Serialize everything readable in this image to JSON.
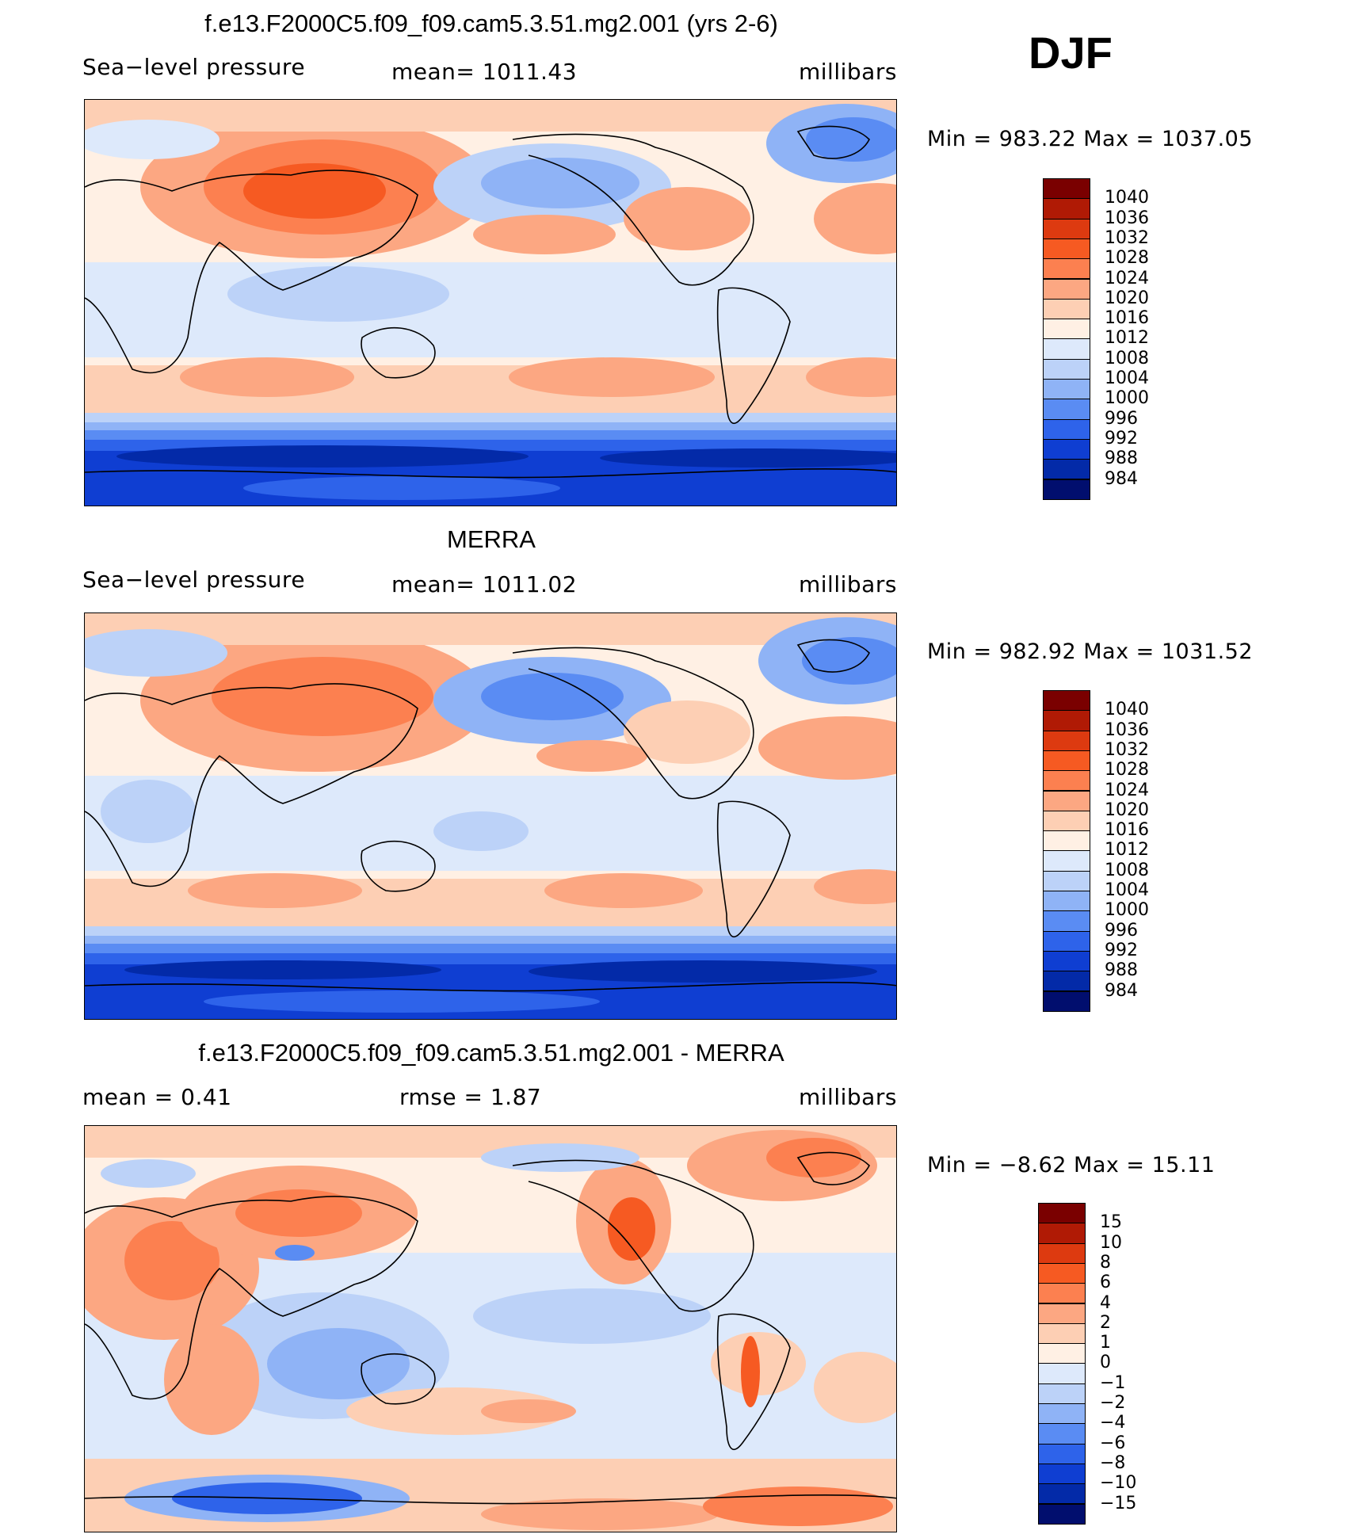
{
  "season": "DJF",
  "panels": [
    {
      "id": "model",
      "title": "f.e13.F2000C5.f09_f09.cam5.3.51.mg2.001 (yrs 2-6)",
      "left_label": "Sea−level pressure",
      "center_label": "mean=  1011.43",
      "right_label": "millibars",
      "minmax": "Min  =  983.22  Max  =  1037.05",
      "palette": "abs"
    },
    {
      "id": "obs",
      "title": "MERRA",
      "left_label": "Sea−level pressure",
      "center_label": "mean=  1011.02",
      "right_label": "millibars",
      "minmax": "Min  =  982.92  Max  =  1031.52",
      "palette": "abs"
    },
    {
      "id": "diff",
      "title": "f.e13.F2000C5.f09_f09.cam5.3.51.mg2.001 - MERRA",
      "left_label": "mean  =     0.41",
      "center_label": "rmse  =     1.87",
      "right_label": "millibars",
      "minmax": "Min  =   −8.62  Max  =    15.11",
      "palette": "diff"
    }
  ],
  "colorbars": {
    "abs": {
      "labels": [
        "1040",
        "1036",
        "1032",
        "1028",
        "1024",
        "1020",
        "1016",
        "1012",
        "1008",
        "1004",
        "1000",
        "996",
        "992",
        "988",
        "984"
      ],
      "colors": [
        "#7a0000",
        "#b01a05",
        "#dd3a10",
        "#f65a22",
        "#fc8050",
        "#fca782",
        "#fdcfb4",
        "#fff0e4",
        "#dde9fb",
        "#bcd2f8",
        "#8fb3f6",
        "#5a8cf3",
        "#2e63ea",
        "#0f3ed2",
        "#032aa8",
        "#010e6e"
      ]
    },
    "diff": {
      "labels": [
        "15",
        "10",
        "8",
        "6",
        "4",
        "2",
        "1",
        "0",
        "−1",
        "−2",
        "−4",
        "−6",
        "−8",
        "−10",
        "−15"
      ],
      "colors": [
        "#7a0000",
        "#b01a05",
        "#dd3a10",
        "#f65a22",
        "#fc8050",
        "#fca782",
        "#fdcfb4",
        "#fff0e4",
        "#dde9fb",
        "#bcd2f8",
        "#8fb3f6",
        "#5a8cf3",
        "#2e63ea",
        "#0f3ed2",
        "#032aa8",
        "#010e6e"
      ]
    }
  },
  "colors": {
    "strong_high": "#e8541f",
    "high": "#fb9a70",
    "mild_high": "#fdcfb4",
    "neutral": "#fff0e4",
    "mild_low": "#dde9fb",
    "low": "#9bbcf6",
    "deep_low": "#2e63ea",
    "deepest_low": "#032aa8"
  }
}
